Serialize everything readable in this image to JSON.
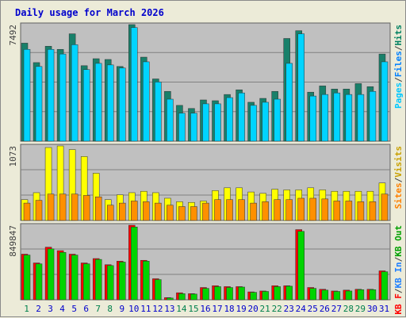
{
  "title": "Daily usage for March 2026",
  "colors": {
    "pages": "#007f5f",
    "files": "#00d4ff",
    "hits": "#008060",
    "visits": "#ffff00",
    "sites": "#ff8000",
    "kbin": "#00cc00",
    "kbout": "#ff0000",
    "plot_bg": "#c0c0c0",
    "grid": "#808080",
    "day_weekend": "#00804c",
    "day_weekday": "#0000cc"
  },
  "chart_data": [
    {
      "type": "bar",
      "name": "hits-pages-files",
      "x": [
        "1",
        "2",
        "3",
        "4",
        "5",
        "6",
        "7",
        "8",
        "9",
        "10",
        "11",
        "12",
        "13",
        "14",
        "15",
        "16",
        "17",
        "18",
        "19",
        "20",
        "21",
        "22",
        "23",
        "24",
        "25",
        "26",
        "27",
        "28",
        "29",
        "30",
        "31"
      ],
      "ylim": [
        0,
        7492
      ],
      "ytick_label": "7492",
      "legend_labels": [
        "Pages",
        "/",
        "Files",
        "/",
        "Hits"
      ],
      "series": [
        {
          "name": "Hits",
          "values": [
            6300,
            5050,
            6100,
            5900,
            6900,
            4850,
            5300,
            5250,
            4800,
            7492,
            5400,
            4000,
            3200,
            2300,
            2100,
            2650,
            2600,
            3000,
            3300,
            2500,
            2750,
            3200,
            6600,
            7100,
            3150,
            3550,
            3350,
            3350,
            3700,
            3500,
            5600
          ]
        },
        {
          "name": "Files",
          "values": [
            5900,
            4800,
            5900,
            5600,
            6200,
            4600,
            5000,
            4900,
            4700,
            7300,
            5100,
            3800,
            2700,
            1800,
            1800,
            2400,
            2400,
            2800,
            3100,
            2300,
            2500,
            2700,
            5000,
            6900,
            2900,
            3000,
            3100,
            3000,
            3000,
            3200,
            5100
          ]
        }
      ]
    },
    {
      "type": "bar",
      "name": "visits-sites",
      "x": [
        "1",
        "2",
        "3",
        "4",
        "5",
        "6",
        "7",
        "8",
        "9",
        "10",
        "11",
        "12",
        "13",
        "14",
        "15",
        "16",
        "17",
        "18",
        "19",
        "20",
        "21",
        "22",
        "23",
        "24",
        "25",
        "26",
        "27",
        "28",
        "29",
        "30",
        "31"
      ],
      "ylim": [
        0,
        1073
      ],
      "ytick_label": "1073",
      "legend_labels": [
        "Sites",
        "/",
        "Visits"
      ],
      "series": [
        {
          "name": "Visits",
          "values": [
            300,
            400,
            1050,
            1073,
            1020,
            920,
            680,
            300,
            370,
            400,
            420,
            400,
            320,
            270,
            260,
            280,
            430,
            470,
            470,
            410,
            390,
            450,
            440,
            440,
            470,
            440,
            420,
            420,
            420,
            420,
            540
          ]
        },
        {
          "name": "Sites",
          "values": [
            250,
            290,
            380,
            380,
            380,
            360,
            340,
            220,
            250,
            280,
            270,
            250,
            220,
            200,
            200,
            250,
            300,
            300,
            300,
            250,
            270,
            300,
            300,
            320,
            320,
            310,
            280,
            280,
            270,
            270,
            380
          ]
        }
      ]
    },
    {
      "type": "bar",
      "name": "kbin-kbout",
      "x": [
        "1",
        "2",
        "3",
        "4",
        "5",
        "6",
        "7",
        "8",
        "9",
        "10",
        "11",
        "12",
        "13",
        "14",
        "15",
        "16",
        "17",
        "18",
        "19",
        "20",
        "21",
        "22",
        "23",
        "24",
        "25",
        "26",
        "27",
        "28",
        "29",
        "30",
        "31"
      ],
      "ylim": [
        0,
        849847
      ],
      "ytick_label": "849847",
      "legend_labels": [
        "KB F",
        "/",
        "KB In",
        "/",
        "KB Out"
      ],
      "series": [
        {
          "name": "KB F",
          "values": [
            520000,
            420000,
            600000,
            560000,
            520000,
            420000,
            470000,
            400000,
            440000,
            849847,
            450000,
            240000,
            25000,
            80000,
            70000,
            140000,
            160000,
            150000,
            150000,
            90000,
            100000,
            160000,
            160000,
            800000,
            140000,
            120000,
            100000,
            110000,
            120000,
            120000,
            330000
          ]
        },
        {
          "name": "KB In",
          "values": [
            510000,
            410000,
            580000,
            540000,
            510000,
            410000,
            460000,
            390000,
            430000,
            830000,
            440000,
            230000,
            20000,
            70000,
            65000,
            130000,
            150000,
            140000,
            145000,
            85000,
            95000,
            150000,
            155000,
            780000,
            130000,
            110000,
            95000,
            100000,
            115000,
            115000,
            320000
          ]
        }
      ]
    }
  ],
  "days": [
    "1",
    "2",
    "3",
    "4",
    "5",
    "6",
    "7",
    "8",
    "9",
    "10",
    "11",
    "12",
    "13",
    "14",
    "15",
    "16",
    "17",
    "18",
    "19",
    "20",
    "21",
    "22",
    "23",
    "24",
    "25",
    "26",
    "27",
    "28",
    "29",
    "30",
    "31"
  ],
  "weekend_days": [
    1,
    7,
    8,
    14,
    15,
    21,
    22,
    28,
    29
  ]
}
